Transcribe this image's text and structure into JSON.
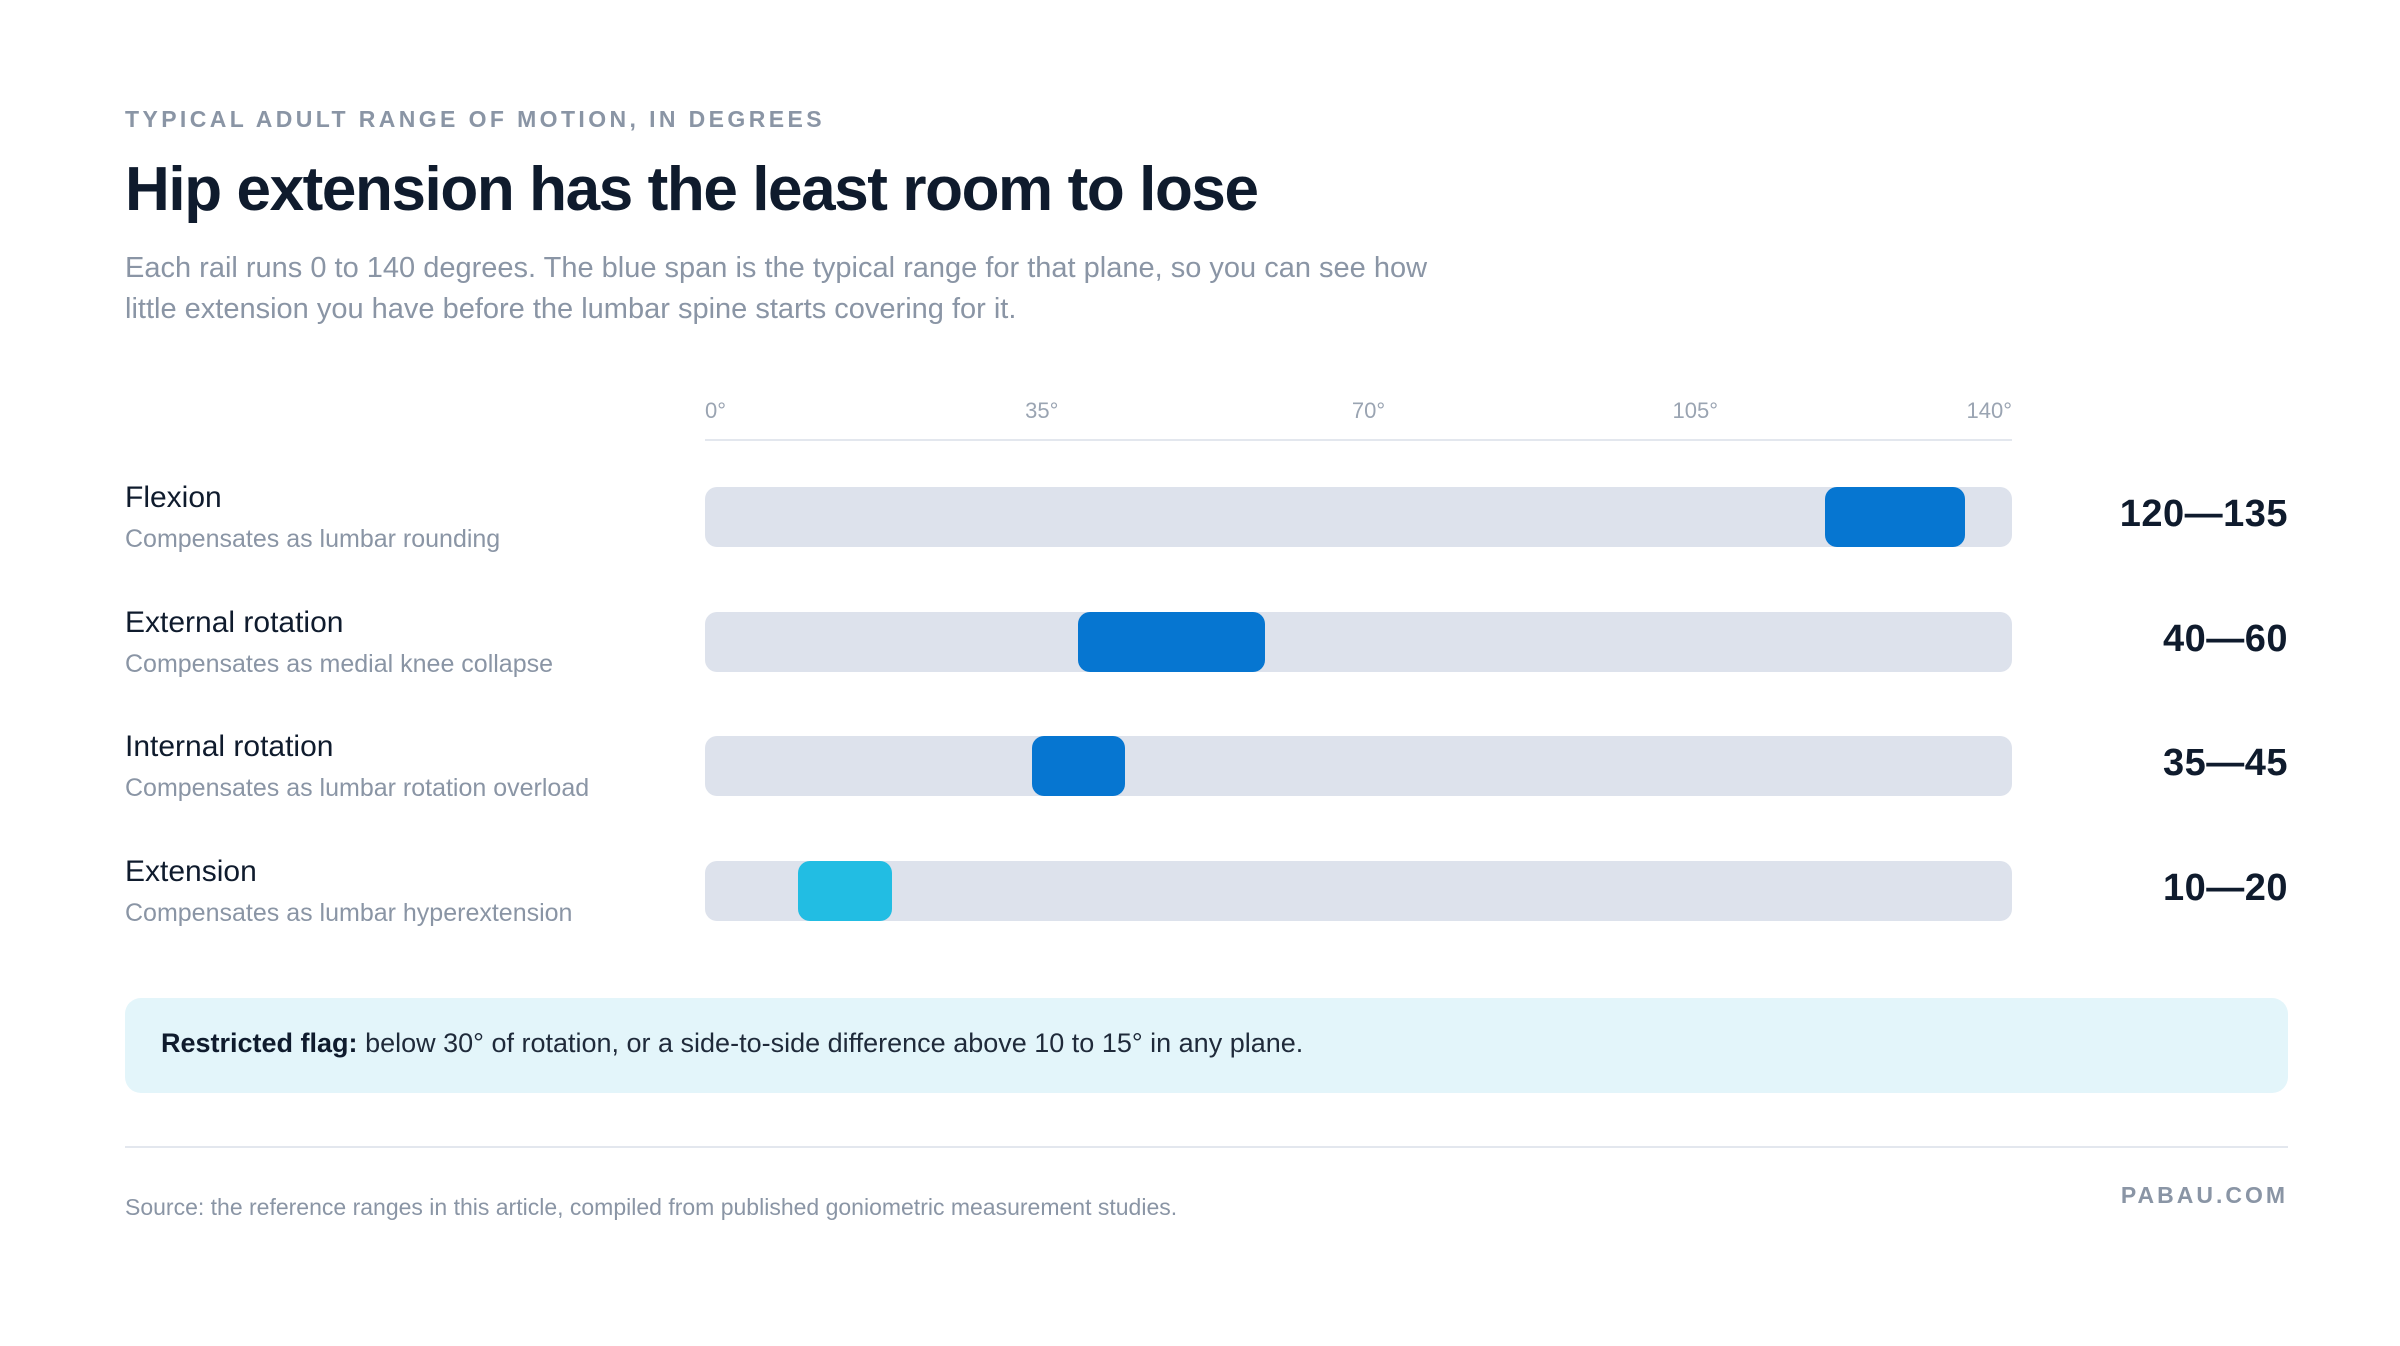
{
  "header": {
    "kicker": "TYPICAL ADULT RANGE OF MOTION, IN DEGREES",
    "title": "Hip extension has the least room to lose",
    "subtitle": "Each rail runs 0 to 140 degrees. The blue span is the typical range for that plane, so you can see how little extension you have before the lumbar spine starts covering for it."
  },
  "chart_data": {
    "type": "bar",
    "orientation": "horizontal-range",
    "xlim": [
      0,
      140
    ],
    "x_ticks": [
      0,
      35,
      70,
      105,
      140
    ],
    "x_tick_labels": [
      "0°",
      "35°",
      "70°",
      "105°",
      "140°"
    ],
    "grid": false,
    "legend": "none",
    "rows": [
      {
        "label": "Flexion",
        "note": "Compensates as lumbar rounding",
        "min": 120,
        "max": 135,
        "value_label": "120—135",
        "color": "#0676d1"
      },
      {
        "label": "External rotation",
        "note": "Compensates as medial knee collapse",
        "min": 40,
        "max": 60,
        "value_label": "40—60",
        "color": "#0676d1"
      },
      {
        "label": "Internal rotation",
        "note": "Compensates as lumbar rotation overload",
        "min": 35,
        "max": 45,
        "value_label": "35—45",
        "color": "#0676d1"
      },
      {
        "label": "Extension",
        "note": "Compensates as lumbar hyperextension",
        "min": 10,
        "max": 20,
        "value_label": "10—20",
        "color": "#22bde3"
      }
    ]
  },
  "flag": {
    "label": "Restricted flag:",
    "text": "below 30° of rotation, or a side-to-side difference above 10 to 15° in any plane."
  },
  "footer": {
    "source": "Source: the reference ranges in this article, compiled from published goniometric measurement studies.",
    "brand": "PABAU.COM"
  },
  "colors": {
    "rail": "#dde2ec",
    "span_primary": "#0676d1",
    "span_highlight": "#22bde3",
    "flag_background": "#e3f5fa"
  }
}
